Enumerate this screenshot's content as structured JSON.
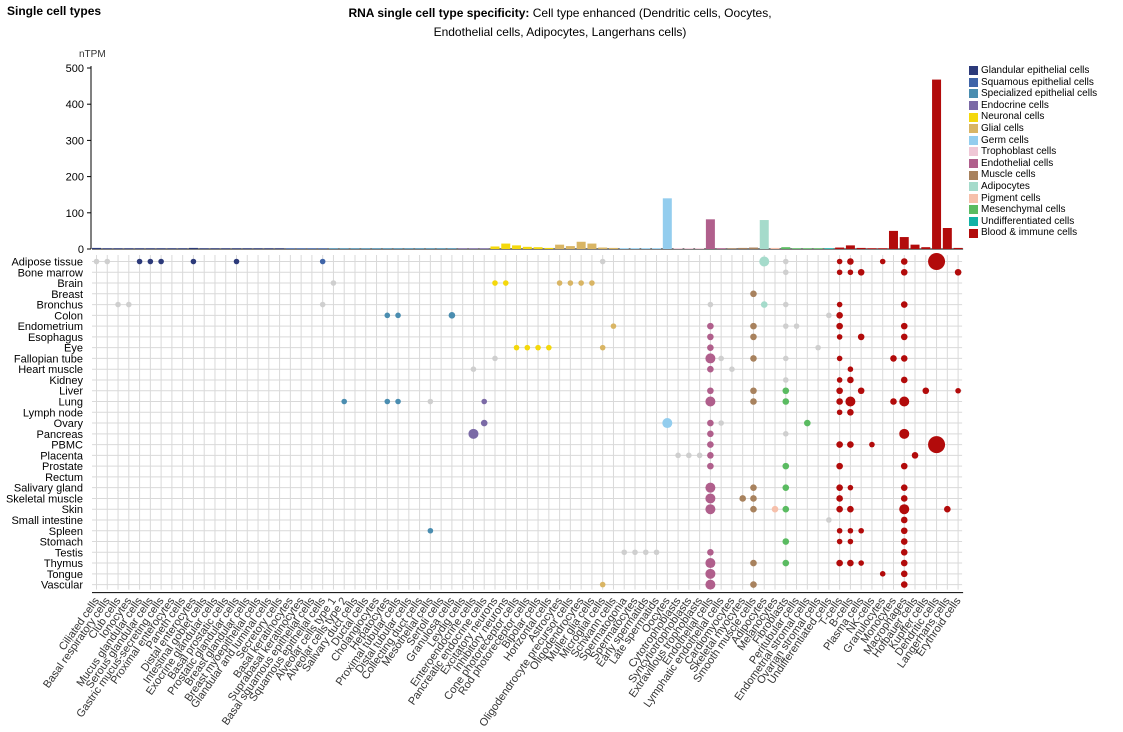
{
  "header": {
    "left_title": "Single cell types",
    "title_bold": "RNA single cell type specificity:",
    "title_rest": " Cell type enhanced (Dendritic cells, Oocytes, Endothelial cells, Adipocytes, Langerhans cells)"
  },
  "legend": [
    {
      "name": "Glandular epithelial cells",
      "color": "#2c3a7a"
    },
    {
      "name": "Squamous epithelial cells",
      "color": "#3f64a8"
    },
    {
      "name": "Specialized epithelial cells",
      "color": "#4a8db0"
    },
    {
      "name": "Endocrine cells",
      "color": "#7b6aa6"
    },
    {
      "name": "Neuronal cells",
      "color": "#f4d80c"
    },
    {
      "name": "Glial cells",
      "color": "#d9b564"
    },
    {
      "name": "Germ cells",
      "color": "#93cdee"
    },
    {
      "name": "Trophoblast cells",
      "color": "#efc7d6"
    },
    {
      "name": "Endothelial cells",
      "color": "#b05f8c"
    },
    {
      "name": "Muscle cells",
      "color": "#a8825e"
    },
    {
      "name": "Adipocytes",
      "color": "#a5dbcb"
    },
    {
      "name": "Pigment cells",
      "color": "#f6c0ab"
    },
    {
      "name": "Mesenchymal cells",
      "color": "#5abb61"
    },
    {
      "name": "Undifferentiated cells",
      "color": "#12b2a6"
    },
    {
      "name": "Blood & immune cells",
      "color": "#b20b0b"
    }
  ],
  "chart_data": {
    "type": "bar",
    "ylabel": "nTPM",
    "ylim": [
      0,
      500
    ],
    "yticks": [
      0,
      100,
      200,
      300,
      400,
      500
    ],
    "categories": [
      "Ciliated cells",
      "Basal respiratory cells",
      "Club cells",
      "Ionocytes",
      "Mucus glandular cells",
      "Serous glandular cells",
      "Gastric mucus-secreting cells",
      "Proximal enterocytes",
      "Paneth cells",
      "Distal enterocytes",
      "Intestinal goblet cells",
      "Exocrine glandular cells",
      "Basal prostatic cells",
      "Prostatic glandular cells",
      "Breast glandular cells",
      "Breast myoepithelial cells",
      "Glandular and luminal cells",
      "Secretory cells",
      "Basal keratinocytes",
      "Suprabasal keratinocytes",
      "Basal squamous epithelial cells",
      "Squamous epithelial cells",
      "Alveolar cells type 1",
      "Alveolar cells type 2",
      "Salivary duct cells",
      "Ductal cells",
      "Cholangiocytes",
      "Hepatocytes",
      "Proximal tubular cells",
      "Distal tubular cells",
      "Collecting duct cells",
      "Mesothelial cells",
      "Sertoli cells",
      "Granulosa cells",
      "Leydig cells",
      "Enteroendocrine cells",
      "Pancreatic endocrine cells",
      "Excitatory neurons",
      "Inhibitory neurons",
      "Cone photoreceptor cells",
      "Rod photoreceptor cells",
      "Bipolar cells",
      "Horizontal cells",
      "Astrocytes",
      "Oligodendrocyte precursor cells",
      "Oligodendrocytes",
      "Muller glia cells",
      "Microglial cells",
      "Schwann cells",
      "Spermatogonia",
      "Spermatocytes",
      "Early spermatids",
      "Late spermatids",
      "Oocytes",
      "Cytotrophoblasts",
      "Syncytiotrophoblasts",
      "Extravillous trophoblasts",
      "Endothelial cells",
      "Lymphatic endothelial cells",
      "Cardiomyocytes",
      "Skeletal myocytes",
      "Smooth muscle cells",
      "Adipocytes",
      "Melanocytes",
      "Fibroblasts",
      "Peritubular cells",
      "Endometrial stromal cells",
      "Ovarian stromal cells",
      "Undifferentiated cells",
      "T-cells",
      "B-cells",
      "Plasma cells",
      "NK-cells",
      "Granulocytes",
      "Monocytes",
      "Macrophages",
      "Hofbauer cells",
      "Kupffer cells",
      "Dendritic cells",
      "Langerhans cells",
      "Erythroid cells"
    ],
    "group_index": [
      0,
      0,
      0,
      0,
      0,
      0,
      0,
      0,
      0,
      0,
      0,
      0,
      0,
      0,
      0,
      0,
      0,
      0,
      1,
      1,
      1,
      1,
      2,
      2,
      2,
      2,
      2,
      2,
      2,
      2,
      2,
      2,
      2,
      2,
      3,
      3,
      3,
      4,
      4,
      4,
      4,
      4,
      4,
      5,
      5,
      5,
      5,
      5,
      5,
      6,
      6,
      6,
      6,
      6,
      7,
      7,
      7,
      8,
      8,
      9,
      9,
      9,
      10,
      11,
      12,
      12,
      12,
      12,
      13,
      14,
      14,
      14,
      14,
      14,
      14,
      14,
      14,
      14,
      14,
      14,
      14
    ],
    "values": [
      3,
      1,
      1,
      1,
      1,
      2,
      1,
      2,
      2,
      3,
      2,
      2,
      1,
      1,
      1,
      1,
      1,
      1,
      2,
      1,
      1,
      1,
      1,
      1,
      1,
      1,
      1,
      1,
      1,
      1,
      1,
      1,
      1,
      1,
      1,
      2,
      1,
      7,
      15,
      10,
      6,
      5,
      3,
      12,
      8,
      20,
      15,
      4,
      3,
      2,
      1,
      1,
      1,
      140,
      1,
      1,
      1,
      82,
      2,
      2,
      3,
      4,
      80,
      3,
      5,
      2,
      2,
      2,
      1,
      4,
      10,
      3,
      2,
      2,
      50,
      33,
      12,
      5,
      468,
      58,
      3
    ],
    "tissues": [
      "Adipose tissue",
      "Bone marrow",
      "Brain",
      "Breast",
      "Bronchus",
      "Colon",
      "Endometrium",
      "Esophagus",
      "Eye",
      "Fallopian tube",
      "Heart muscle",
      "Kidney",
      "Liver",
      "Lung",
      "Lymph node",
      "Ovary",
      "Pancreas",
      "PBMC",
      "Placenta",
      "Prostate",
      "Rectum",
      "Salivary gland",
      "Skeletal muscle",
      "Skin",
      "Small intestine",
      "Spleen",
      "Stomach",
      "Testis",
      "Thymus",
      "Tongue",
      "Vascular"
    ],
    "dots": [
      [
        0,
        0,
        0
      ],
      [
        1,
        0,
        0
      ],
      [
        2,
        4,
        0
      ],
      [
        3,
        4,
        0
      ],
      [
        4,
        0,
        0
      ],
      [
        5,
        0,
        0
      ],
      [
        6,
        0,
        0
      ],
      [
        9,
        0,
        0
      ],
      [
        13,
        0,
        0
      ],
      [
        21,
        0,
        0
      ],
      [
        23,
        13,
        0
      ],
      [
        27,
        13,
        0
      ],
      [
        28,
        13,
        0
      ],
      [
        22,
        2,
        0
      ],
      [
        27,
        5,
        0
      ],
      [
        28,
        5,
        0
      ],
      [
        21,
        4,
        0
      ],
      [
        31,
        25,
        0
      ],
      [
        35,
        10,
        0
      ],
      [
        36,
        13,
        0
      ],
      [
        37,
        9,
        0
      ],
      [
        33,
        5,
        1
      ],
      [
        31,
        13,
        0
      ],
      [
        36,
        15,
        1
      ],
      [
        35,
        16,
        2
      ],
      [
        37,
        2,
        0
      ],
      [
        38,
        2,
        0
      ],
      [
        39,
        8,
        0
      ],
      [
        40,
        8,
        0
      ],
      [
        41,
        8,
        0
      ],
      [
        42,
        8,
        0
      ],
      [
        43,
        2,
        0
      ],
      [
        44,
        2,
        0
      ],
      [
        45,
        2,
        0
      ],
      [
        46,
        2,
        0
      ],
      [
        47,
        8,
        0
      ],
      [
        47,
        0,
        0
      ],
      [
        47,
        30,
        0
      ],
      [
        48,
        6,
        0
      ],
      [
        49,
        27,
        0
      ],
      [
        50,
        27,
        0
      ],
      [
        51,
        27,
        0
      ],
      [
        52,
        27,
        0
      ],
      [
        53,
        15,
        2
      ],
      [
        54,
        18,
        0
      ],
      [
        55,
        18,
        0
      ],
      [
        56,
        18,
        0
      ],
      [
        57,
        4,
        0
      ],
      [
        57,
        6,
        1
      ],
      [
        57,
        7,
        1
      ],
      [
        57,
        8,
        1
      ],
      [
        57,
        9,
        2
      ],
      [
        57,
        10,
        1
      ],
      [
        57,
        12,
        1
      ],
      [
        57,
        13,
        2
      ],
      [
        57,
        15,
        1
      ],
      [
        57,
        16,
        1
      ],
      [
        57,
        17,
        1
      ],
      [
        57,
        18,
        1
      ],
      [
        57,
        19,
        1
      ],
      [
        57,
        21,
        2
      ],
      [
        57,
        22,
        2
      ],
      [
        57,
        23,
        2
      ],
      [
        57,
        27,
        1
      ],
      [
        57,
        28,
        2
      ],
      [
        57,
        29,
        2
      ],
      [
        57,
        30,
        2
      ],
      [
        58,
        9,
        0
      ],
      [
        58,
        15,
        0
      ],
      [
        59,
        10,
        0
      ],
      [
        60,
        22,
        1
      ],
      [
        61,
        3,
        1
      ],
      [
        61,
        6,
        1
      ],
      [
        61,
        7,
        1
      ],
      [
        61,
        9,
        1
      ],
      [
        61,
        12,
        1
      ],
      [
        61,
        13,
        1
      ],
      [
        61,
        21,
        1
      ],
      [
        61,
        22,
        1
      ],
      [
        61,
        23,
        1
      ],
      [
        61,
        28,
        1
      ],
      [
        61,
        30,
        1
      ],
      [
        62,
        0,
        2
      ],
      [
        62,
        4,
        1
      ],
      [
        63,
        23,
        1
      ],
      [
        64,
        0,
        0
      ],
      [
        64,
        4,
        0
      ],
      [
        64,
        12,
        1
      ],
      [
        64,
        13,
        1
      ],
      [
        64,
        19,
        1
      ],
      [
        64,
        21,
        1
      ],
      [
        64,
        23,
        1
      ],
      [
        64,
        26,
        1
      ],
      [
        64,
        28,
        1
      ],
      [
        64,
        1,
        0
      ],
      [
        64,
        6,
        0
      ],
      [
        64,
        9,
        0
      ],
      [
        64,
        11,
        0
      ],
      [
        64,
        16,
        0
      ],
      [
        65,
        6,
        0
      ],
      [
        66,
        15,
        1
      ],
      [
        67,
        8,
        0
      ],
      [
        68,
        5,
        0
      ],
      [
        68,
        24,
        0
      ],
      [
        69,
        4,
        0
      ],
      [
        69,
        0,
        0
      ],
      [
        69,
        1,
        0
      ],
      [
        69,
        5,
        1
      ],
      [
        69,
        6,
        1
      ],
      [
        69,
        7,
        0
      ],
      [
        69,
        9,
        0
      ],
      [
        69,
        11,
        0
      ],
      [
        69,
        12,
        1
      ],
      [
        69,
        13,
        1
      ],
      [
        69,
        14,
        0
      ],
      [
        69,
        17,
        1
      ],
      [
        69,
        19,
        1
      ],
      [
        69,
        21,
        1
      ],
      [
        69,
        22,
        1
      ],
      [
        69,
        23,
        1
      ],
      [
        69,
        25,
        0
      ],
      [
        69,
        26,
        0
      ],
      [
        69,
        28,
        1
      ],
      [
        70,
        0,
        1
      ],
      [
        70,
        1,
        0
      ],
      [
        70,
        10,
        0
      ],
      [
        70,
        11,
        1
      ],
      [
        70,
        13,
        2
      ],
      [
        70,
        14,
        1
      ],
      [
        70,
        17,
        1
      ],
      [
        70,
        21,
        0
      ],
      [
        70,
        23,
        1
      ],
      [
        70,
        25,
        0
      ],
      [
        70,
        26,
        0
      ],
      [
        70,
        28,
        1
      ],
      [
        71,
        1,
        1
      ],
      [
        71,
        7,
        1
      ],
      [
        71,
        12,
        1
      ],
      [
        71,
        25,
        0
      ],
      [
        71,
        28,
        0
      ],
      [
        72,
        17,
        0
      ],
      [
        73,
        29,
        0
      ],
      [
        73,
        0,
        0
      ],
      [
        74,
        9,
        1
      ],
      [
        74,
        13,
        1
      ],
      [
        75,
        0,
        1
      ],
      [
        75,
        1,
        1
      ],
      [
        75,
        4,
        1
      ],
      [
        75,
        6,
        1
      ],
      [
        75,
        7,
        1
      ],
      [
        75,
        9,
        1
      ],
      [
        75,
        11,
        1
      ],
      [
        75,
        13,
        2
      ],
      [
        75,
        16,
        2
      ],
      [
        75,
        19,
        1
      ],
      [
        75,
        21,
        1
      ],
      [
        75,
        22,
        1
      ],
      [
        75,
        23,
        2
      ],
      [
        75,
        24,
        1
      ],
      [
        75,
        25,
        1
      ],
      [
        75,
        26,
        1
      ],
      [
        75,
        27,
        1
      ],
      [
        75,
        28,
        1
      ],
      [
        75,
        29,
        1
      ],
      [
        75,
        30,
        1
      ],
      [
        76,
        18,
        1
      ],
      [
        77,
        12,
        1
      ],
      [
        78,
        0,
        3
      ],
      [
        78,
        17,
        3
      ],
      [
        79,
        23,
        1
      ],
      [
        80,
        1,
        1
      ],
      [
        80,
        12,
        0
      ]
    ]
  }
}
